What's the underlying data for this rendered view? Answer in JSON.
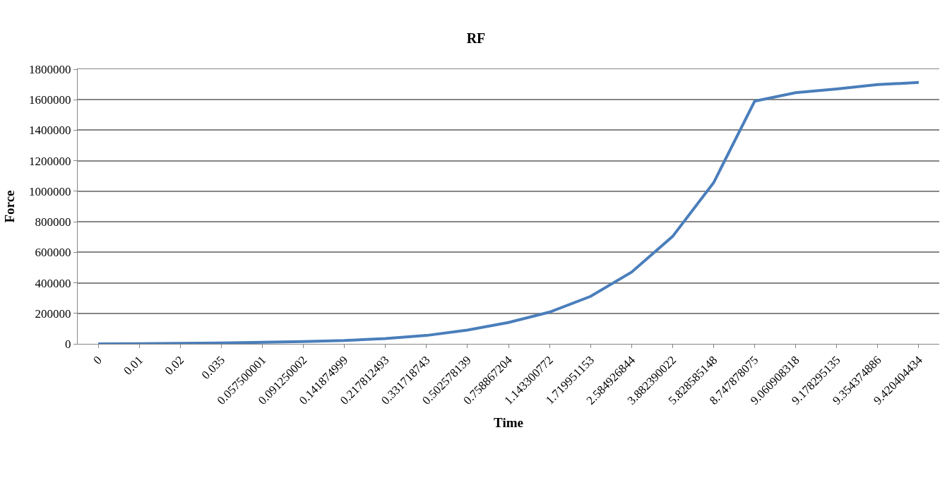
{
  "chart_data": {
    "type": "line",
    "title": "RF",
    "xlabel": "Time",
    "ylabel": "Force",
    "categories": [
      "0",
      "0.01",
      "0.02",
      "0.035",
      "0.057500001",
      "0.091250002",
      "0.141874999",
      "0.217812493",
      "0.331718743",
      "0.502578139",
      "0.758867204",
      "1.143300772",
      "1.719951153",
      "2.584926844",
      "3.882390022",
      "5.828585148",
      "8.747878075",
      "9.060908318",
      "9.178295135",
      "9.354374886",
      "9.420404434"
    ],
    "series": [
      {
        "color": "#4a7ebb",
        "values": [
          0,
          1000,
          3000,
          6000,
          10000,
          15000,
          22000,
          35000,
          55000,
          90000,
          140000,
          208000,
          311000,
          470000,
          704000,
          1056000,
          1590000,
          1646000,
          1670000,
          1699000,
          1713000
        ]
      }
    ],
    "ylim": [
      0,
      1800000
    ],
    "yticks": [
      0,
      200000,
      400000,
      600000,
      800000,
      1000000,
      1200000,
      1400000,
      1600000,
      1800000
    ],
    "grid": "y",
    "marker": "none",
    "line_style": "solid"
  }
}
